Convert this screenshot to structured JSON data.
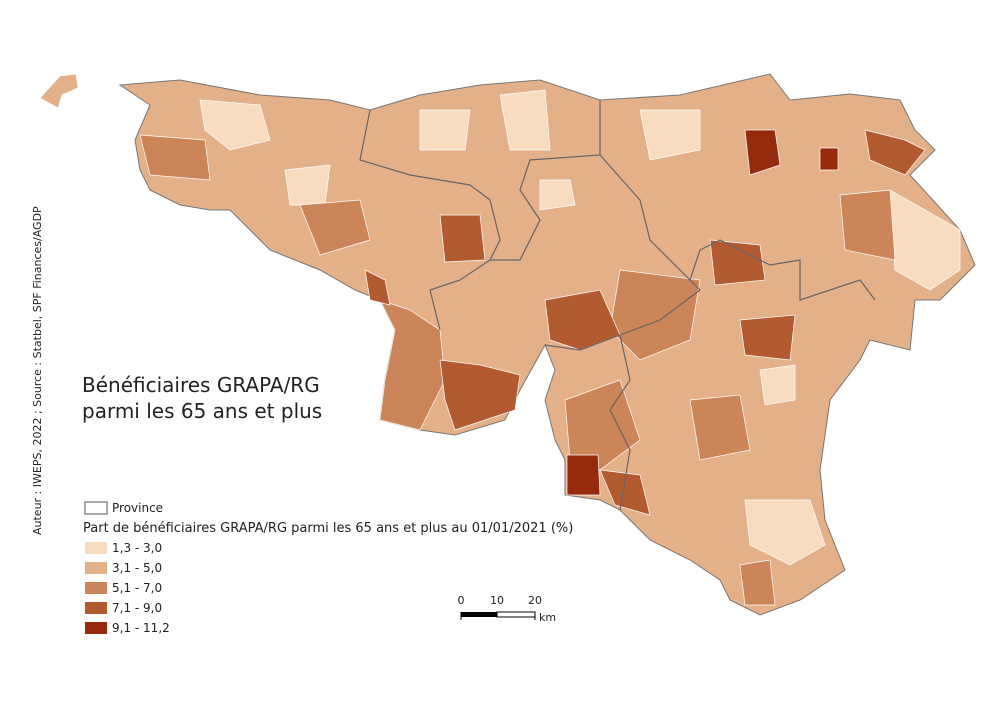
{
  "title": [
    "Bénéficiaires GRAPA/RG",
    "parmi les 65 ans et plus"
  ],
  "credit": "Auteur : IWEPS, 2022 ; Source : Statbel, SPF Finances/AGDP",
  "legend": {
    "province": "Province",
    "title": "Part de bénéficiaires GRAPA/RG parmi les 65 ans et plus au 01/01/2021 (%)",
    "classes": [
      {
        "label": "1,3 - 3,0",
        "color": "#f7dcc0"
      },
      {
        "label": "3,1 - 5,0",
        "color": "#e3b088"
      },
      {
        "label": "5,1 - 7,0",
        "color": "#cc8558"
      },
      {
        "label": "7,1 - 9,0",
        "color": "#b35a30"
      },
      {
        "label": "9,1 - 11,2",
        "color": "#952a0c"
      }
    ]
  },
  "scale": {
    "ticks": [
      0,
      10,
      20
    ],
    "unit": "km"
  }
}
